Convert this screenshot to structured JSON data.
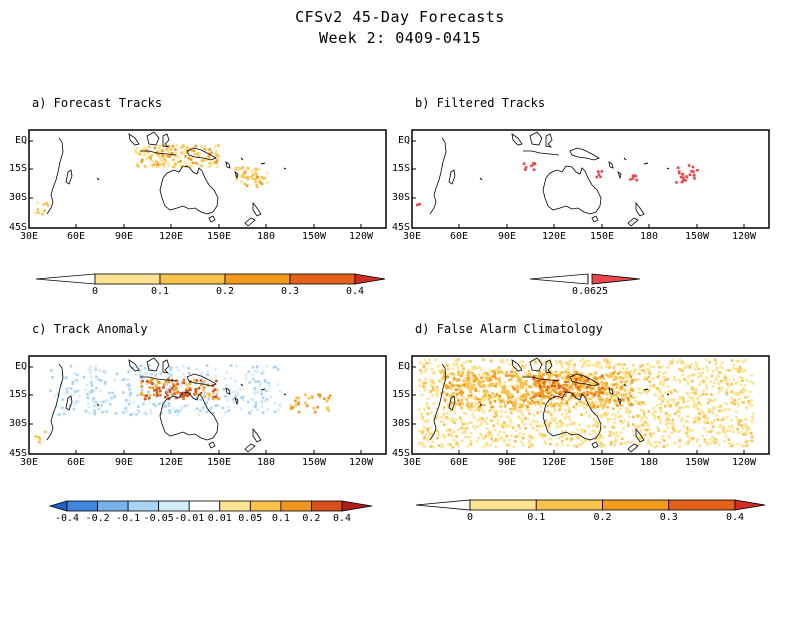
{
  "header": {
    "title": "CFSv2 45-Day Forecasts",
    "subtitle": "Week 2: 0409-0415"
  },
  "x_ticks": [
    "30E",
    "60E",
    "90E",
    "120E",
    "150E",
    "180",
    "150W",
    "120W"
  ],
  "y_ticks": [
    "EQ",
    "15S",
    "30S",
    "45S"
  ],
  "panels": [
    {
      "id": "a",
      "title": "a) Forecast Tracks",
      "colorbar": {
        "labels": [
          "0",
          "0.1",
          "0.2",
          "0.3",
          "0.4"
        ],
        "colors": [
          "#ffffff",
          "#fde392",
          "#f8c24d",
          "#f29b1f",
          "#e5611a",
          "#d02d27"
        ]
      }
    },
    {
      "id": "b",
      "title": "b) Filtered Tracks",
      "colorbar": {
        "labels": [
          "0.0625"
        ],
        "colors": [
          "#ffffff",
          "#e8474d"
        ]
      }
    },
    {
      "id": "c",
      "title": "c) Track Anomaly",
      "colorbar": {
        "labels": [
          "-0.4",
          "-0.2",
          "-0.1",
          "-0.05",
          "-0.01",
          "0.01",
          "0.05",
          "0.1",
          "0.2",
          "0.4"
        ],
        "colors": [
          "#1e62c8",
          "#3f86dc",
          "#78b2ec",
          "#a8d4f6",
          "#d2ecfb",
          "#ffffff",
          "#fde392",
          "#f8c24d",
          "#f0951f",
          "#d8501c",
          "#b01c1c"
        ]
      }
    },
    {
      "id": "d",
      "title": "d) False Alarm Climatology",
      "colorbar": {
        "labels": [
          "0",
          "0.1",
          "0.2",
          "0.3",
          "0.4"
        ],
        "colors": [
          "#ffffff",
          "#fde392",
          "#f8c24d",
          "#f29b1f",
          "#e5611a",
          "#d02d27"
        ]
      }
    }
  ]
}
